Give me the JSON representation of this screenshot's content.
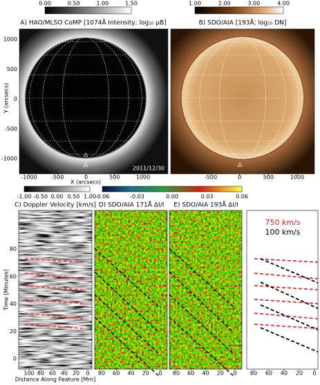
{
  "colorbars": [
    {
      "ticks": [
        "0.00",
        "0.50",
        "1.00",
        "1.50"
      ]
    },
    {
      "ticks": [
        "1.00",
        "2.00",
        "3.00",
        "4.00"
      ]
    },
    {
      "ticks": [
        "-1.00",
        "-0.50",
        "0.00",
        "0.50",
        "1.00"
      ]
    },
    {
      "ticks": [
        "-0.06",
        "-0.03",
        "0.00",
        "0.03",
        "0.06"
      ]
    }
  ],
  "panels": [
    {
      "title": "A) HAO/MLSO CoMP [1074Å Intensity; log₁₀ μB]",
      "annotation": "2011/12/30"
    },
    {
      "title": "B) SDO/AIA [193Å; log₁₀ DN]"
    },
    {
      "title": "C) Doppler Velocity [km/s]"
    },
    {
      "title": "D) SDO/AIA 171Å ΔI/I"
    },
    {
      "title": "E) SDO/AIA 193Å ΔI/I"
    }
  ],
  "top_axes": {
    "x_label": "X (arcsecs)",
    "y_label": "Y (arcsecs)",
    "y_ticks": [
      "1000",
      "500",
      "0",
      "-500",
      "-1000"
    ],
    "x_ticks_a": [
      "-1000",
      "-500",
      "0",
      "500",
      "1000"
    ],
    "x_ticks_b": [
      "-500",
      "0",
      "500",
      "1000"
    ]
  },
  "bottom_axes": {
    "x_label": "Distance Along Feature [Mm]",
    "y_label": "Time [Minutes]",
    "y_ticks": [
      "0",
      "20",
      "40",
      "60",
      "80"
    ],
    "x_ticks_c": [
      "100",
      "80",
      "60",
      "40",
      "20",
      "0"
    ],
    "x_ticks_d": [
      "80",
      "60",
      "40",
      "20",
      "0"
    ],
    "x_ticks_e": [
      "80",
      "60",
      "40",
      "20",
      "0"
    ],
    "x_ticks_f": [
      "80",
      "60",
      "40",
      "20",
      "0"
    ]
  },
  "legend": {
    "fast": "750 km/s",
    "slow": "100 km/s"
  }
}
